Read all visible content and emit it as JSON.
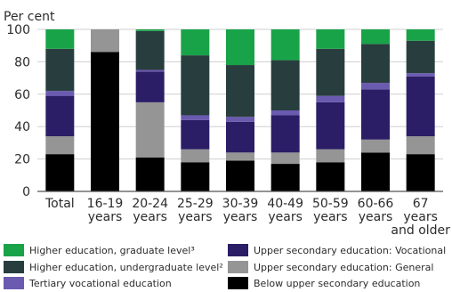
{
  "chart_data": {
    "type": "bar",
    "stacked": true,
    "ylabel": "Per cent",
    "ylim": [
      0,
      100
    ],
    "yticks": [
      0,
      20,
      40,
      60,
      80,
      100
    ],
    "grid": true,
    "legend_position": "bottom",
    "categories": [
      [
        "Total"
      ],
      [
        "16-19",
        "years"
      ],
      [
        "20-24",
        "years"
      ],
      [
        "25-29",
        "years"
      ],
      [
        "30-39",
        "years"
      ],
      [
        "40-49",
        "years"
      ],
      [
        "50-59",
        "years"
      ],
      [
        "60-66",
        "years"
      ],
      [
        "67",
        "years",
        "and older"
      ]
    ],
    "series": [
      {
        "name": "Below upper secondary education",
        "color": "#000000",
        "values": [
          23,
          86,
          21,
          18,
          19,
          17,
          18,
          24,
          23
        ]
      },
      {
        "name": "Upper secondary education: General",
        "color": "#959595",
        "values": [
          11,
          14,
          34,
          8,
          5,
          7,
          8,
          8,
          11
        ]
      },
      {
        "name": "Upper secondary education: Vocational",
        "color": "#2b1e66",
        "values": [
          25,
          0,
          19,
          18,
          19,
          23,
          29,
          31,
          37
        ]
      },
      {
        "name": "Tertiary vocational education",
        "color": "#6a5ab0",
        "values": [
          3,
          0,
          1,
          3,
          3,
          3,
          4,
          4,
          2
        ]
      },
      {
        "name": "Higher education, undergraduate level²",
        "color": "#283e3e",
        "values": [
          26,
          0,
          24,
          37,
          32,
          31,
          29,
          24,
          20
        ]
      },
      {
        "name": "Higher education, graduate level³",
        "color": "#18a348",
        "values": [
          12,
          0,
          1,
          16,
          22,
          19,
          12,
          9,
          7
        ]
      }
    ]
  },
  "legend": [
    {
      "label": "Higher education, graduate level³",
      "color": "#18a348"
    },
    {
      "label": "Higher education, undergraduate level²",
      "color": "#283e3e"
    },
    {
      "label": "Tertiary vocational education",
      "color": "#6a5ab0"
    },
    {
      "label": "Upper secondary education: Vocational",
      "color": "#2b1e66"
    },
    {
      "label": "Upper secondary education: General",
      "color": "#959595"
    },
    {
      "label": "Below upper secondary education",
      "color": "#000000"
    }
  ]
}
